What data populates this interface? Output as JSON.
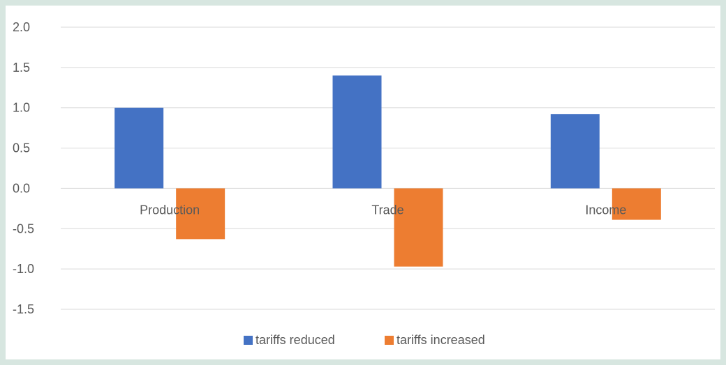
{
  "chart_data": {
    "type": "bar",
    "categories": [
      "Production",
      "Trade",
      "Income"
    ],
    "series": [
      {
        "name": "tariffs reduced",
        "values": [
          1.0,
          1.4,
          0.92
        ],
        "color": "#4472c4"
      },
      {
        "name": "tariffs increased",
        "values": [
          -0.63,
          -0.97,
          -0.39
        ],
        "color": "#ed7d31"
      }
    ],
    "y_ticks": [
      "2.0",
      "1.5",
      "1.0",
      "0.5",
      "0.0",
      "-0.5",
      "-1.0",
      "-1.5"
    ],
    "ylim": [
      -1.5,
      2.0
    ],
    "grid": true,
    "legend_position": "bottom"
  }
}
